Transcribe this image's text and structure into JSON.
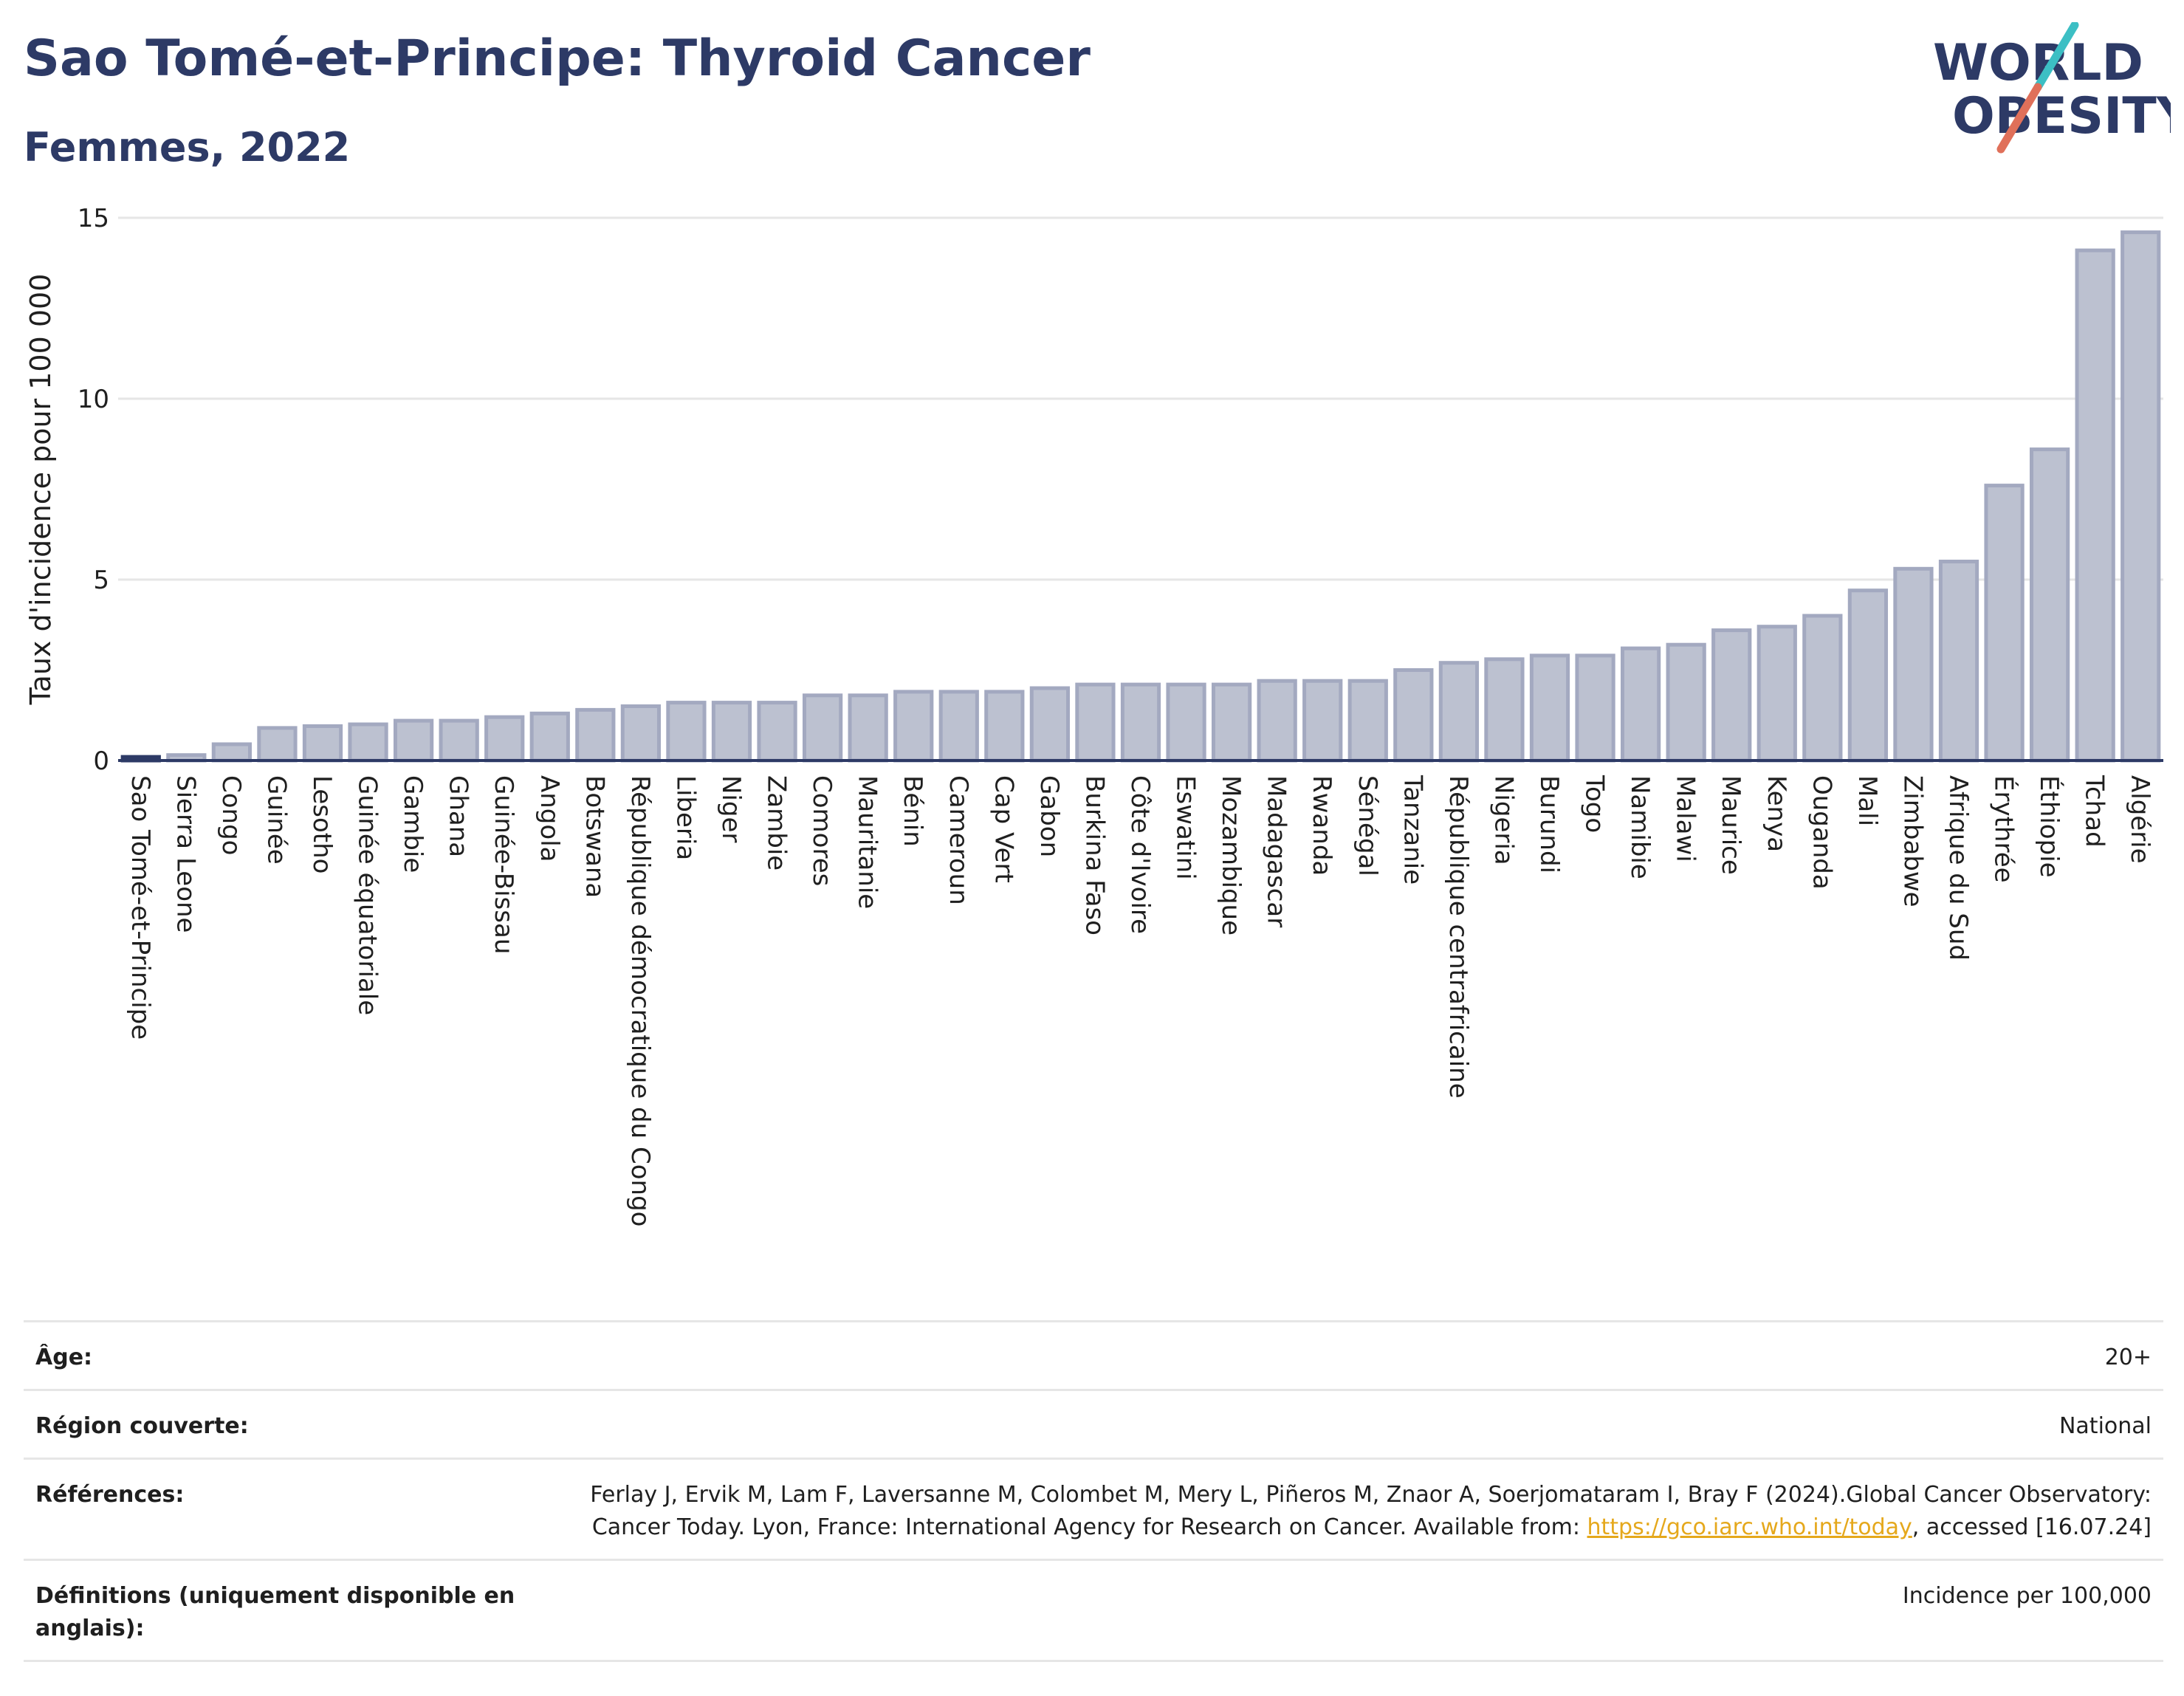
{
  "page": {
    "title": "Sao Tomé-et-Principe: Thyroid Cancer",
    "subtitle": "Femmes, 2022"
  },
  "logo": {
    "line1": "WORLD",
    "line2": "OBESITY",
    "colors": {
      "text": "#2d3a66",
      "slash_top": "#3cbfc4",
      "slash_bottom": "#e0705a"
    }
  },
  "chart_data": {
    "type": "bar",
    "ylabel": "Taux d'incidence pour 100 000",
    "ylim": [
      0,
      15
    ],
    "yticks": [
      0,
      5,
      10,
      15
    ],
    "grid": true,
    "highlight_category": "Sao Tomé-et-Principe",
    "colors": {
      "bar_fill": "#bcc1d0",
      "bar_stroke": "#a3a9c0",
      "highlight": "#2d3a66",
      "grid": "#e6e6e6",
      "axis": "#2d3a66"
    },
    "categories": [
      "Sao Tomé-et-Principe",
      "Sierra Leone",
      "Congo",
      "Guinée",
      "Lesotho",
      "Guinée équatoriale",
      "Gambie",
      "Ghana",
      "Guinée-Bissau",
      "Angola",
      "Botswana",
      "République démocratique du Congo",
      "Liberia",
      "Niger",
      "Zambie",
      "Comores",
      "Mauritanie",
      "Bénin",
      "Cameroun",
      "Cap Vert",
      "Gabon",
      "Burkina Faso",
      "Côte d'Ivoire",
      "Eswatini",
      "Mozambique",
      "Madagascar",
      "Rwanda",
      "Sénégal",
      "Tanzanie",
      "République centrafricaine",
      "Nigeria",
      "Burundi",
      "Togo",
      "Namibie",
      "Malawi",
      "Maurice",
      "Kenya",
      "Ouganda",
      "Mali",
      "Zimbabwe",
      "Afrique du Sud",
      "Érythrée",
      "Éthiopie",
      "Tchad",
      "Algérie"
    ],
    "values": [
      0.1,
      0.15,
      0.45,
      0.9,
      0.95,
      1.0,
      1.1,
      1.1,
      1.2,
      1.3,
      1.4,
      1.5,
      1.6,
      1.6,
      1.6,
      1.8,
      1.8,
      1.9,
      1.9,
      1.9,
      2.0,
      2.1,
      2.1,
      2.1,
      2.1,
      2.2,
      2.2,
      2.2,
      2.5,
      2.7,
      2.8,
      2.9,
      2.9,
      3.1,
      3.2,
      3.6,
      3.7,
      4.0,
      4.7,
      5.3,
      5.5,
      7.6,
      8.6,
      14.1,
      14.6
    ]
  },
  "info": {
    "age_label": "Âge:",
    "age_value": "20+",
    "region_label": "Région couverte:",
    "region_value": "National",
    "refs_label": "Références:",
    "refs_text_1": "Ferlay J, Ervik M, Lam F, Laversanne M, Colombet M, Mery L, Piñeros M, Znaor A, Soerjomataram I, Bray F (2024).Global Cancer Observatory: Cancer Today. Lyon, France: International Agency for Research on Cancer. Available from: ",
    "refs_link": "https://gco.iarc.who.int/today",
    "refs_text_2": ", accessed [16.07.24]",
    "defs_label": "Définitions (uniquement disponible en anglais):",
    "defs_value": "Incidence per 100,000"
  }
}
